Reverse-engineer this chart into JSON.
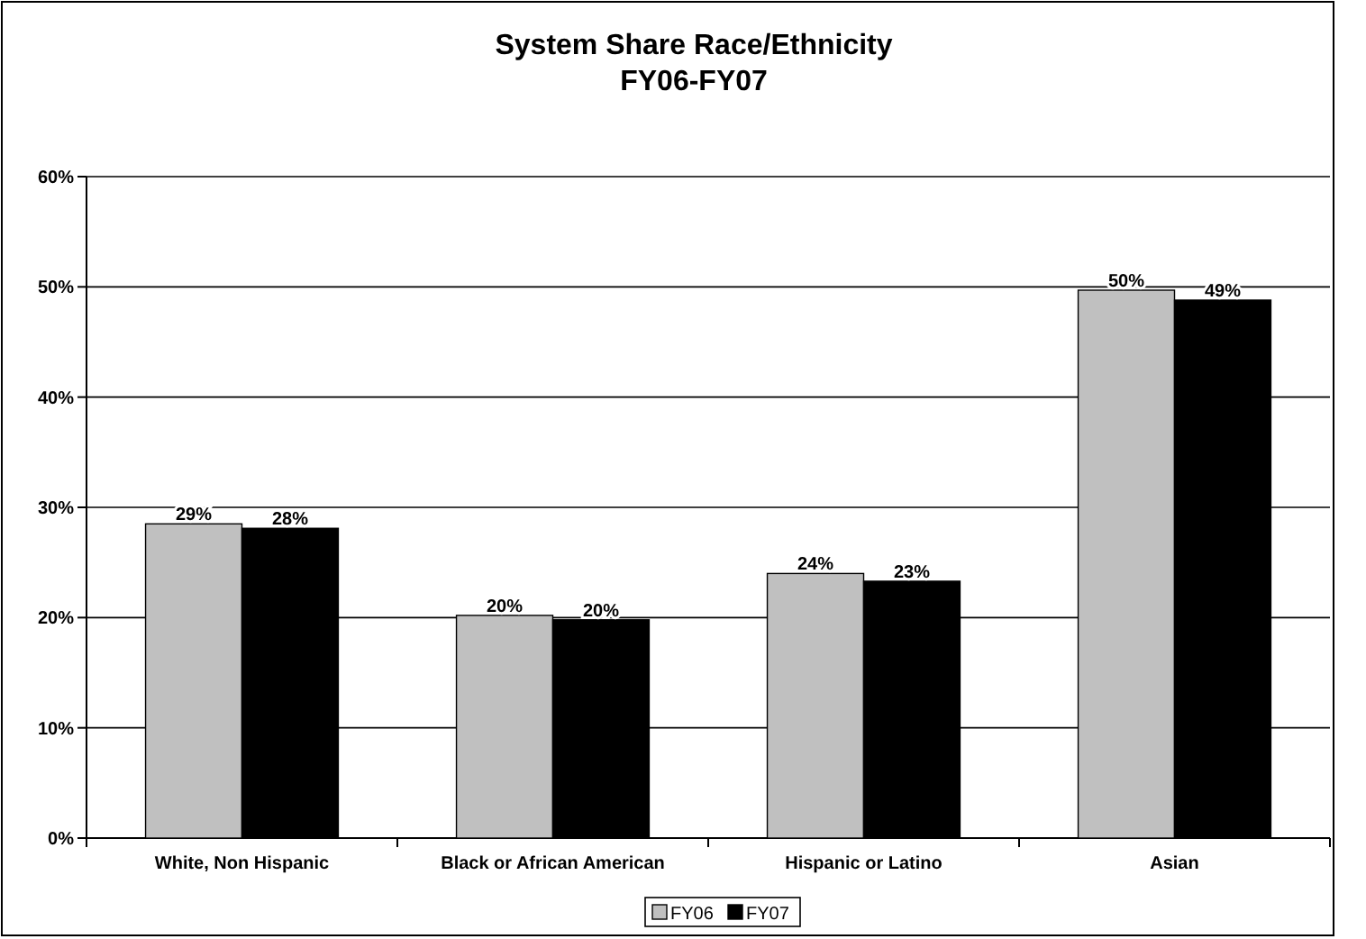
{
  "chart_data": {
    "type": "bar",
    "title": "System Share Race/Ethnicity\nFY06-FY07",
    "categories": [
      "White, Non Hispanic",
      "Black or African American",
      "Hispanic or Latino",
      "Asian"
    ],
    "series": [
      {
        "name": "FY06",
        "color": "#c0c0c0",
        "values": [
          28.5,
          20.2,
          24,
          49.7
        ],
        "value_labels": [
          "29%",
          "20%",
          "24%",
          "50%"
        ]
      },
      {
        "name": "FY07",
        "color": "#000000",
        "values": [
          28.1,
          19.8,
          23.3,
          48.8
        ],
        "value_labels": [
          "28%",
          "20%",
          "23%",
          "49%"
        ]
      }
    ],
    "ylim": [
      0,
      60
    ],
    "yticks": [
      {
        "value": 0,
        "label": "0%"
      },
      {
        "value": 10,
        "label": "10%"
      },
      {
        "value": 20,
        "label": "20%"
      },
      {
        "value": 30,
        "label": "30%"
      },
      {
        "value": 40,
        "label": "40%"
      },
      {
        "value": 50,
        "label": "50%"
      },
      {
        "value": 60,
        "label": "60%"
      }
    ],
    "grid": "y",
    "legend": "bottom"
  }
}
